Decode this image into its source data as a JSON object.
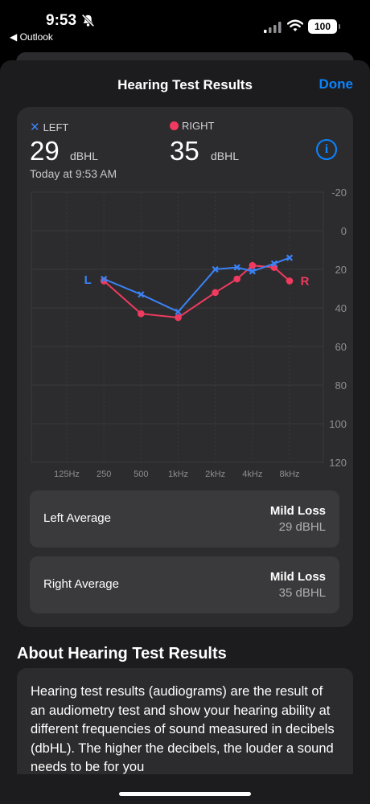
{
  "status_bar": {
    "time": "9:53",
    "back_app": "◀ Outlook",
    "battery": "100"
  },
  "nav": {
    "title": "Hearing Test Results",
    "done_label": "Done"
  },
  "summary": {
    "left_label": "LEFT",
    "right_label": "RIGHT",
    "left_value": "29",
    "right_value": "35",
    "unit": "dBHL",
    "timestamp": "Today at 9:53 AM",
    "info_glyph": "i"
  },
  "colors": {
    "left": "#3b82f6",
    "right": "#f03a5f",
    "accent": "#0a84ff"
  },
  "chart_data": {
    "type": "line",
    "x_tick_labels": [
      "125Hz",
      "250",
      "500",
      "1kHz",
      "2kHz",
      "4kHz",
      "8kHz"
    ],
    "y_tick_labels": [
      "-20",
      "0",
      "20",
      "40",
      "60",
      "80",
      "100",
      "120"
    ],
    "ylim": [
      -20,
      120
    ],
    "y_inverted": true,
    "x_scale": "log",
    "series_labels": {
      "left": "L",
      "right": "R"
    },
    "series": [
      {
        "name": "LEFT",
        "marker": "x",
        "points": [
          {
            "x": 250,
            "y": 25
          },
          {
            "x": 500,
            "y": 33
          },
          {
            "x": 1000,
            "y": 42
          },
          {
            "x": 2000,
            "y": 20
          },
          {
            "x": 3000,
            "y": 19
          },
          {
            "x": 4000,
            "y": 21
          },
          {
            "x": 6000,
            "y": 17
          },
          {
            "x": 8000,
            "y": 14
          }
        ]
      },
      {
        "name": "RIGHT",
        "marker": "dot",
        "points": [
          {
            "x": 250,
            "y": 26
          },
          {
            "x": 500,
            "y": 43
          },
          {
            "x": 1000,
            "y": 45
          },
          {
            "x": 2000,
            "y": 32
          },
          {
            "x": 3000,
            "y": 25
          },
          {
            "x": 4000,
            "y": 18
          },
          {
            "x": 6000,
            "y": 19
          },
          {
            "x": 8000,
            "y": 26
          }
        ]
      }
    ]
  },
  "averages": [
    {
      "label": "Left Average",
      "status": "Mild Loss",
      "value": "29 dBHL"
    },
    {
      "label": "Right Average",
      "status": "Mild Loss",
      "value": "35 dBHL"
    }
  ],
  "about": {
    "heading": "About Hearing Test Results",
    "body": "Hearing test results (audiograms) are the result of an audiometry test and show your hearing ability at different frequencies of sound measured in decibels (dbHL). The higher the decibels, the louder a sound needs to be for you"
  }
}
